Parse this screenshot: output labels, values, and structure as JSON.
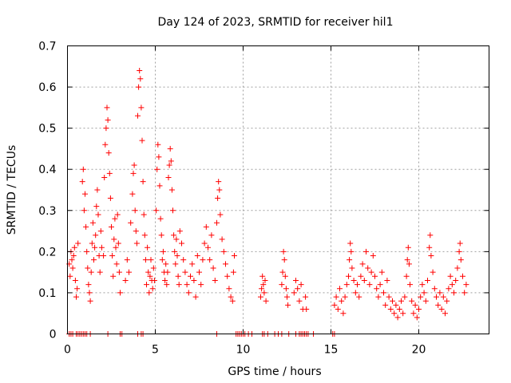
{
  "chart_data": {
    "type": "scatter",
    "title": "Day 124 of 2023, SRMTID for receiver hil1",
    "xlabel": "GPS time / hours",
    "ylabel": "SRMTID / TECUs",
    "xlim": [
      0,
      24
    ],
    "ylim": [
      0,
      0.7
    ],
    "xticks": [
      0,
      5,
      10,
      15,
      20
    ],
    "xtick_labels": [
      "0",
      "5",
      "10",
      "15",
      "20"
    ],
    "yticks": [
      0,
      0.1,
      0.2,
      0.3,
      0.4,
      0.5,
      0.6,
      0.7
    ],
    "ytick_labels": [
      "0",
      "0.1",
      "0.2",
      "0.3",
      "0.4",
      "0.5",
      "0.6",
      "0.7"
    ],
    "grid": true,
    "marker": "plus",
    "series_color": "#ff0000",
    "series": [
      {
        "name": "SRMTID",
        "points": [
          [
            0.1,
            0.17
          ],
          [
            0.15,
            0.14
          ],
          [
            0.2,
            0.2
          ],
          [
            0.25,
            0.18
          ],
          [
            0.3,
            0.16
          ],
          [
            0.35,
            0.19
          ],
          [
            0.4,
            0.21
          ],
          [
            0.45,
            0.13
          ],
          [
            0.5,
            0.09
          ],
          [
            0.55,
            0.11
          ],
          [
            0.6,
            0.22
          ],
          [
            0.85,
            0.37
          ],
          [
            0.9,
            0.4
          ],
          [
            0.95,
            0.3
          ],
          [
            1.0,
            0.34
          ],
          [
            1.05,
            0.26
          ],
          [
            1.1,
            0.2
          ],
          [
            1.15,
            0.16
          ],
          [
            1.2,
            0.12
          ],
          [
            1.25,
            0.1
          ],
          [
            1.3,
            0.08
          ],
          [
            1.35,
            0.15
          ],
          [
            1.4,
            0.22
          ],
          [
            1.45,
            0.27
          ],
          [
            1.5,
            0.18
          ],
          [
            1.55,
            0.21
          ],
          [
            1.6,
            0.24
          ],
          [
            1.65,
            0.31
          ],
          [
            1.7,
            0.35
          ],
          [
            1.75,
            0.29
          ],
          [
            1.8,
            0.19
          ],
          [
            1.85,
            0.15
          ],
          [
            1.9,
            0.25
          ],
          [
            1.95,
            0.21
          ],
          [
            2.05,
            0.19
          ],
          [
            2.1,
            0.38
          ],
          [
            2.15,
            0.46
          ],
          [
            2.2,
            0.5
          ],
          [
            2.25,
            0.55
          ],
          [
            2.3,
            0.52
          ],
          [
            2.35,
            0.44
          ],
          [
            2.4,
            0.39
          ],
          [
            2.45,
            0.33
          ],
          [
            2.5,
            0.26
          ],
          [
            2.55,
            0.19
          ],
          [
            2.6,
            0.14
          ],
          [
            2.65,
            0.23
          ],
          [
            2.7,
            0.28
          ],
          [
            2.75,
            0.21
          ],
          [
            2.8,
            0.17
          ],
          [
            2.85,
            0.29
          ],
          [
            2.9,
            0.22
          ],
          [
            2.95,
            0.15
          ],
          [
            3.0,
            0.1
          ],
          [
            3.3,
            0.13
          ],
          [
            3.4,
            0.18
          ],
          [
            3.5,
            0.15
          ],
          [
            3.6,
            0.27
          ],
          [
            3.7,
            0.34
          ],
          [
            3.75,
            0.39
          ],
          [
            3.8,
            0.41
          ],
          [
            3.85,
            0.3
          ],
          [
            3.9,
            0.25
          ],
          [
            3.95,
            0.22
          ],
          [
            4.0,
            0.53
          ],
          [
            4.05,
            0.6
          ],
          [
            4.1,
            0.64
          ],
          [
            4.15,
            0.62
          ],
          [
            4.2,
            0.55
          ],
          [
            4.25,
            0.47
          ],
          [
            4.3,
            0.37
          ],
          [
            4.35,
            0.29
          ],
          [
            4.4,
            0.24
          ],
          [
            4.45,
            0.18
          ],
          [
            4.5,
            0.12
          ],
          [
            4.55,
            0.21
          ],
          [
            4.6,
            0.15
          ],
          [
            4.65,
            0.1
          ],
          [
            4.7,
            0.14
          ],
          [
            4.75,
            0.18
          ],
          [
            4.8,
            0.13
          ],
          [
            4.85,
            0.11
          ],
          [
            4.9,
            0.16
          ],
          [
            4.95,
            0.13
          ],
          [
            5.05,
            0.3
          ],
          [
            5.1,
            0.4
          ],
          [
            5.15,
            0.46
          ],
          [
            5.2,
            0.43
          ],
          [
            5.25,
            0.36
          ],
          [
            5.3,
            0.28
          ],
          [
            5.35,
            0.24
          ],
          [
            5.4,
            0.18
          ],
          [
            5.45,
            0.2
          ],
          [
            5.5,
            0.15
          ],
          [
            5.55,
            0.13
          ],
          [
            5.6,
            0.17
          ],
          [
            5.65,
            0.12
          ],
          [
            5.7,
            0.15
          ],
          [
            5.75,
            0.38
          ],
          [
            5.8,
            0.41
          ],
          [
            5.85,
            0.45
          ],
          [
            5.9,
            0.42
          ],
          [
            5.95,
            0.35
          ],
          [
            6.0,
            0.3
          ],
          [
            6.05,
            0.24
          ],
          [
            6.1,
            0.2
          ],
          [
            6.15,
            0.17
          ],
          [
            6.2,
            0.23
          ],
          [
            6.25,
            0.19
          ],
          [
            6.3,
            0.14
          ],
          [
            6.35,
            0.12
          ],
          [
            6.4,
            0.25
          ],
          [
            6.5,
            0.22
          ],
          [
            6.6,
            0.18
          ],
          [
            6.7,
            0.15
          ],
          [
            6.8,
            0.12
          ],
          [
            6.9,
            0.1
          ],
          [
            7.0,
            0.14
          ],
          [
            7.1,
            0.17
          ],
          [
            7.2,
            0.13
          ],
          [
            7.3,
            0.09
          ],
          [
            7.4,
            0.19
          ],
          [
            7.5,
            0.15
          ],
          [
            7.6,
            0.12
          ],
          [
            7.7,
            0.18
          ],
          [
            7.8,
            0.22
          ],
          [
            7.9,
            0.26
          ],
          [
            8.0,
            0.21
          ],
          [
            8.1,
            0.18
          ],
          [
            8.2,
            0.24
          ],
          [
            8.3,
            0.16
          ],
          [
            8.4,
            0.13
          ],
          [
            8.5,
            0.27
          ],
          [
            8.55,
            0.33
          ],
          [
            8.6,
            0.37
          ],
          [
            8.65,
            0.35
          ],
          [
            8.7,
            0.29
          ],
          [
            8.8,
            0.23
          ],
          [
            8.9,
            0.2
          ],
          [
            9.0,
            0.17
          ],
          [
            9.1,
            0.14
          ],
          [
            9.2,
            0.11
          ],
          [
            9.3,
            0.09
          ],
          [
            9.4,
            0.08
          ],
          [
            9.45,
            0.15
          ],
          [
            9.5,
            0.19
          ],
          [
            11.0,
            0.09
          ],
          [
            11.05,
            0.11
          ],
          [
            11.1,
            0.14
          ],
          [
            11.15,
            0.12
          ],
          [
            11.2,
            0.1
          ],
          [
            11.25,
            0.13
          ],
          [
            11.3,
            0.08
          ],
          [
            12.2,
            0.12
          ],
          [
            12.25,
            0.15
          ],
          [
            12.3,
            0.2
          ],
          [
            12.35,
            0.18
          ],
          [
            12.4,
            0.14
          ],
          [
            12.45,
            0.11
          ],
          [
            12.5,
            0.09
          ],
          [
            12.55,
            0.07
          ],
          [
            12.9,
            0.1
          ],
          [
            13.0,
            0.13
          ],
          [
            13.1,
            0.11
          ],
          [
            13.2,
            0.08
          ],
          [
            13.3,
            0.12
          ],
          [
            13.4,
            0.06
          ],
          [
            13.55,
            0.09
          ],
          [
            13.6,
            0.06
          ],
          [
            15.2,
            0.07
          ],
          [
            15.3,
            0.09
          ],
          [
            15.4,
            0.06
          ],
          [
            15.5,
            0.11
          ],
          [
            15.6,
            0.08
          ],
          [
            15.7,
            0.05
          ],
          [
            15.8,
            0.09
          ],
          [
            15.9,
            0.12
          ],
          [
            16.0,
            0.14
          ],
          [
            16.05,
            0.18
          ],
          [
            16.1,
            0.22
          ],
          [
            16.15,
            0.2
          ],
          [
            16.2,
            0.16
          ],
          [
            16.3,
            0.13
          ],
          [
            16.4,
            0.1
          ],
          [
            16.5,
            0.12
          ],
          [
            16.6,
            0.09
          ],
          [
            16.7,
            0.14
          ],
          [
            16.8,
            0.17
          ],
          [
            16.9,
            0.13
          ],
          [
            17.0,
            0.2
          ],
          [
            17.1,
            0.16
          ],
          [
            17.2,
            0.12
          ],
          [
            17.3,
            0.15
          ],
          [
            17.4,
            0.19
          ],
          [
            17.5,
            0.14
          ],
          [
            17.6,
            0.11
          ],
          [
            17.7,
            0.09
          ],
          [
            17.8,
            0.12
          ],
          [
            17.9,
            0.15
          ],
          [
            18.0,
            0.1
          ],
          [
            18.1,
            0.07
          ],
          [
            18.2,
            0.13
          ],
          [
            18.3,
            0.09
          ],
          [
            18.4,
            0.06
          ],
          [
            18.5,
            0.08
          ],
          [
            18.6,
            0.05
          ],
          [
            18.7,
            0.07
          ],
          [
            18.8,
            0.04
          ],
          [
            18.9,
            0.06
          ],
          [
            19.0,
            0.08
          ],
          [
            19.1,
            0.05
          ],
          [
            19.2,
            0.09
          ],
          [
            19.3,
            0.14
          ],
          [
            19.35,
            0.18
          ],
          [
            19.4,
            0.21
          ],
          [
            19.45,
            0.17
          ],
          [
            19.5,
            0.12
          ],
          [
            19.6,
            0.08
          ],
          [
            19.7,
            0.05
          ],
          [
            19.8,
            0.07
          ],
          [
            19.9,
            0.04
          ],
          [
            20.0,
            0.06
          ],
          [
            20.1,
            0.09
          ],
          [
            20.2,
            0.12
          ],
          [
            20.3,
            0.1
          ],
          [
            20.4,
            0.08
          ],
          [
            20.5,
            0.13
          ],
          [
            20.6,
            0.21
          ],
          [
            20.65,
            0.24
          ],
          [
            20.7,
            0.19
          ],
          [
            20.8,
            0.15
          ],
          [
            20.9,
            0.11
          ],
          [
            21.0,
            0.09
          ],
          [
            21.1,
            0.07
          ],
          [
            21.2,
            0.1
          ],
          [
            21.3,
            0.06
          ],
          [
            21.4,
            0.09
          ],
          [
            21.5,
            0.05
          ],
          [
            21.6,
            0.08
          ],
          [
            21.7,
            0.11
          ],
          [
            21.8,
            0.14
          ],
          [
            21.9,
            0.12
          ],
          [
            22.0,
            0.1
          ],
          [
            22.1,
            0.13
          ],
          [
            22.2,
            0.16
          ],
          [
            22.3,
            0.2
          ],
          [
            22.35,
            0.22
          ],
          [
            22.4,
            0.18
          ],
          [
            22.5,
            0.14
          ],
          [
            22.6,
            0.1
          ],
          [
            22.7,
            0.12
          ]
        ],
        "zero_points": [
          0.1,
          0.2,
          0.3,
          0.5,
          0.6,
          0.7,
          0.8,
          0.9,
          1.0,
          1.1,
          1.3,
          2.3,
          3.0,
          3.1,
          4.0,
          4.2,
          4.3,
          8.5,
          9.6,
          9.7,
          9.8,
          9.9,
          10.0,
          10.1,
          10.3,
          10.5,
          11.1,
          11.2,
          11.4,
          11.8,
          12.0,
          12.2,
          12.6,
          13.0,
          13.2,
          13.3,
          13.4,
          13.5,
          13.6,
          13.7,
          14.0,
          15.1,
          15.2
        ]
      }
    ]
  }
}
